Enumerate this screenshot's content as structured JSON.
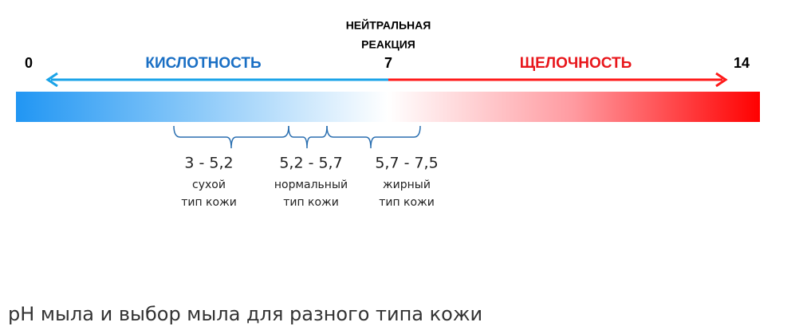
{
  "scale": {
    "min_label": "0",
    "max_label": "14",
    "neutral_label": "7",
    "neutral_title": [
      "НЕЙТРАЛЬНАЯ",
      "РЕАКЦИЯ"
    ],
    "acid_label": "КИСЛОТНОСТЬ",
    "alkaline_label": "ЩЕЛОЧНОСТЬ"
  },
  "ranges": [
    {
      "range": "3 - 5,2",
      "description": [
        "сухой",
        "тип кожи"
      ]
    },
    {
      "range": "5,2 - 5,7",
      "description": [
        "нормальный",
        "тип кожи"
      ]
    },
    {
      "range": "5,7 - 7,5",
      "description": [
        "жирный",
        "тип кожи"
      ]
    }
  ],
  "caption": "pH мыла и выбор мыла для разного типа кожи"
}
